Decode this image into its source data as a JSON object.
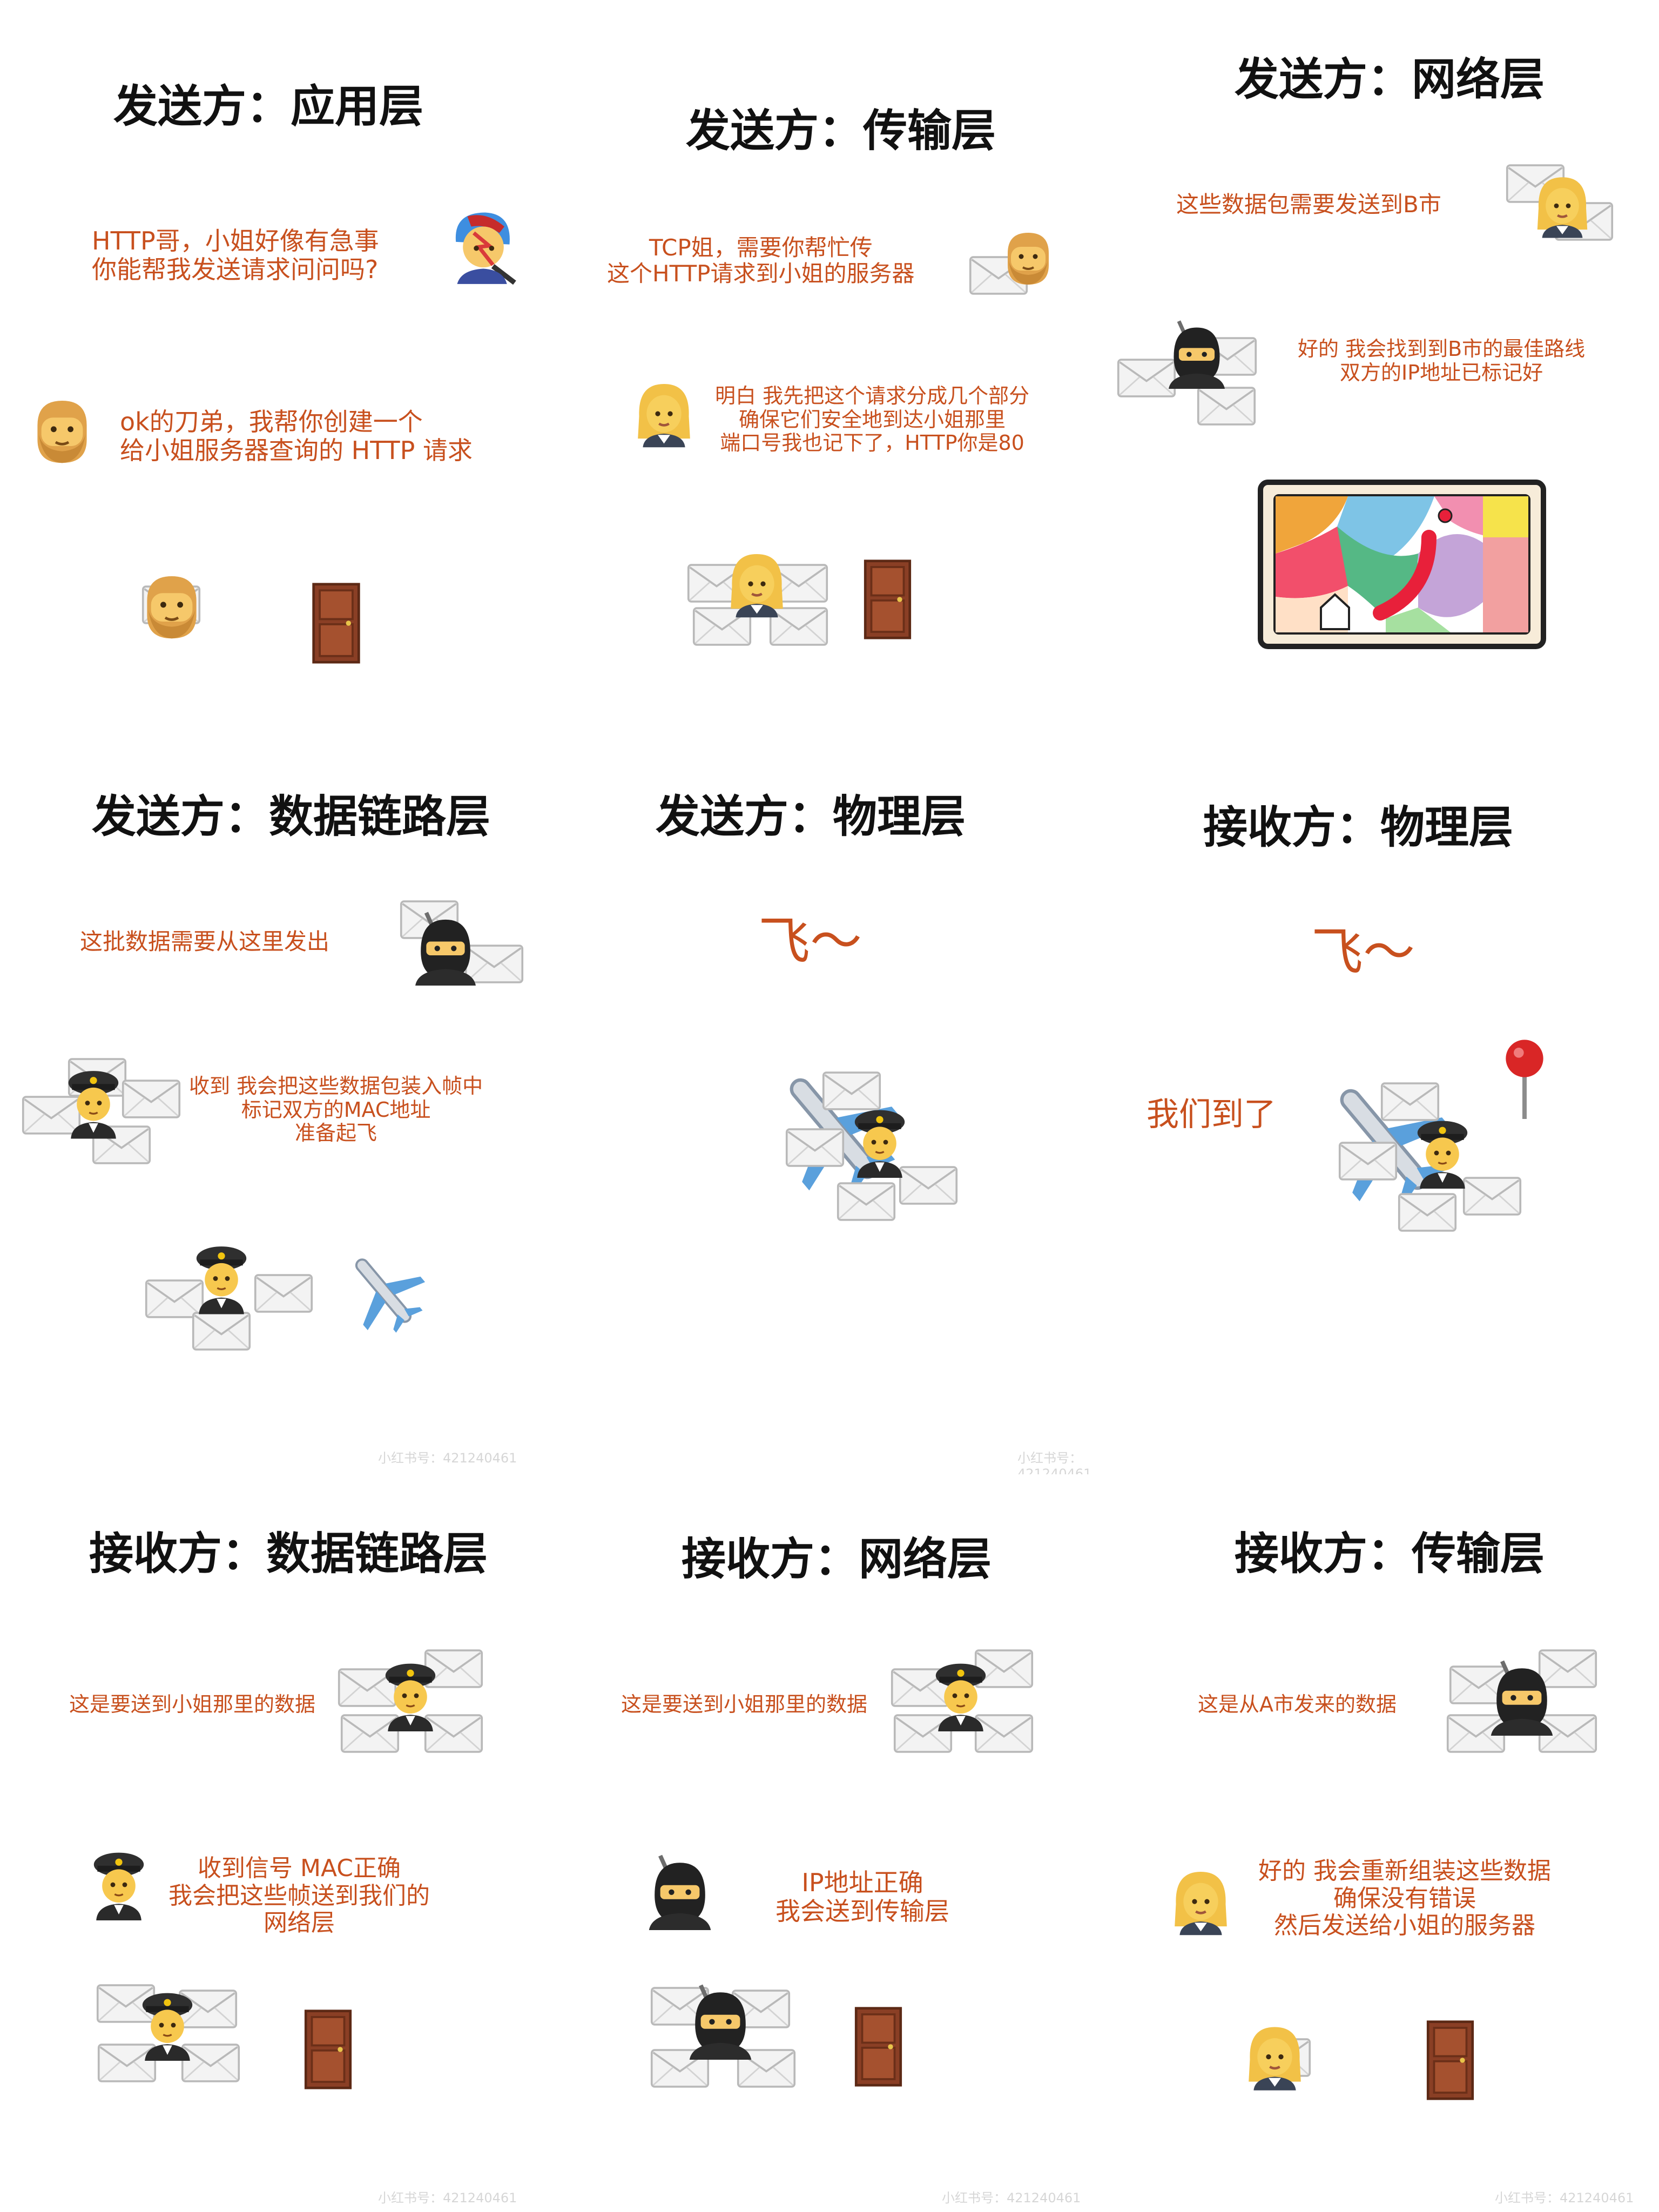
{
  "panels": [
    {
      "title": "发送方：应用层",
      "messages": [
        "HTTP哥，小姐好像有急事\n你能帮我发送请求问问吗?",
        "ok的刀弟，我帮你创建一个\n给小姐服务器查询的 HTTP 请求"
      ]
    },
    {
      "title": "发送方：传输层",
      "messages": [
        "TCP姐，需要你帮忙传\n这个HTTP请求到小姐的服务器",
        "明白 我先把这个请求分成几个部分\n确保它们安全地到达小姐那里\n端口号我也记下了，HTTP你是80"
      ]
    },
    {
      "title": "发送方：网络层",
      "messages": [
        "这些数据包需要发送到B市",
        "好的 我会找到到B市的最佳路线\n双方的IP地址已标记好"
      ]
    },
    {
      "title": "发送方：数据链路层",
      "messages": [
        "这批数据需要从这里发出",
        "收到 我会把这些数据包装入帧中\n标记双方的MAC地址\n准备起飞"
      ]
    },
    {
      "title": "发送方：物理层",
      "messages": [
        "飞～"
      ]
    },
    {
      "title": "接收方：物理层",
      "messages": [
        "飞～",
        "我们到了"
      ]
    },
    {
      "title": "接收方：数据链路层",
      "messages": [
        "这是要送到小姐那里的数据",
        "收到信号 MAC正确\n我会把这些帧送到我们的\n网络层"
      ]
    },
    {
      "title": "接收方：网络层",
      "messages": [
        "这是要送到小姐那里的数据",
        "IP地址正确\n我会送到传输层"
      ]
    },
    {
      "title": "接收方：传输层",
      "messages": [
        "这是从A市发来的数据",
        "好的 我会重新组装这些数据\n确保没有错误\n然后发送给小姐的服务器"
      ]
    }
  ],
  "watermark": "小红书号：421240461",
  "colors": {
    "text_accent": "#c8501e",
    "title": "#111111",
    "background": "#ffffff"
  },
  "icons": [
    "singer-icon",
    "bearded-man-icon",
    "envelope-icon",
    "door-icon",
    "woman-icon",
    "ninja-icon",
    "map-icon",
    "pilot-icon",
    "airplane-icon",
    "pushpin-icon"
  ]
}
